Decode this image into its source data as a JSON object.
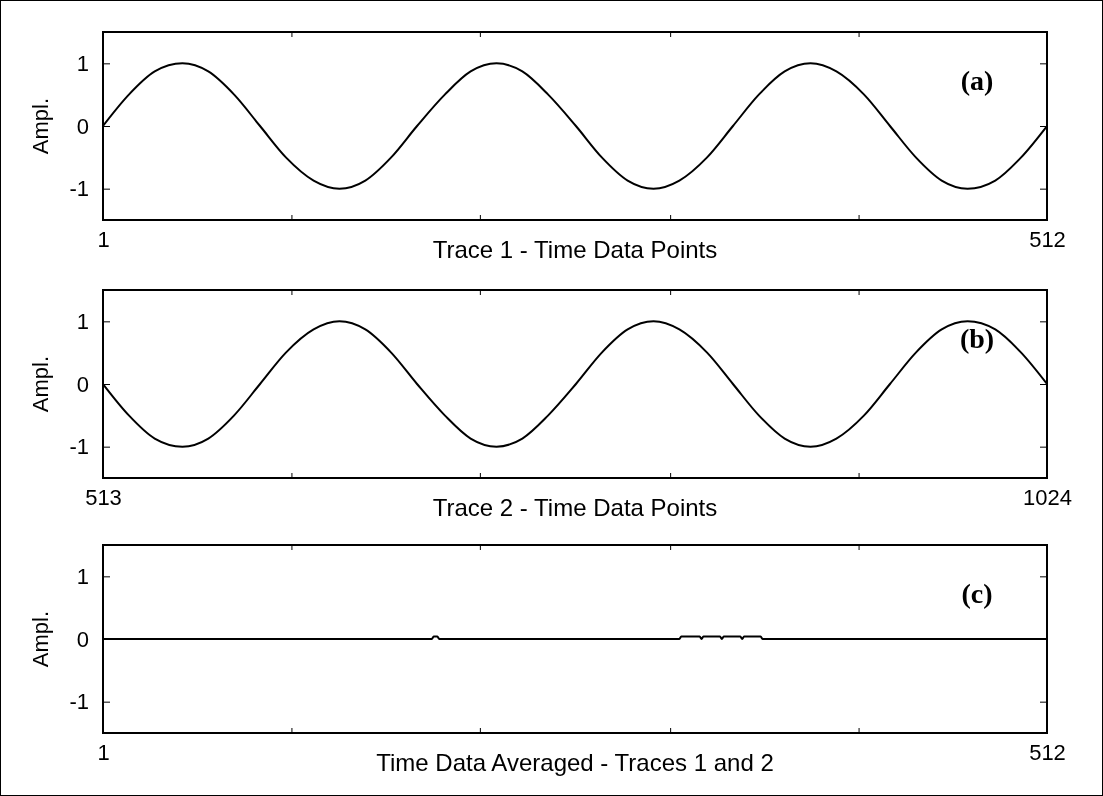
{
  "chart_data": [
    {
      "type": "line",
      "xlabel": "Trace 1 - Time Data Points",
      "ylabel": "Ampl.",
      "annotations": [
        "(a)"
      ],
      "xlim": [
        1,
        512
      ],
      "xticks": [
        1,
        {
          "value": 103,
          "label": null
        },
        {
          "value": 205,
          "label": null
        },
        {
          "value": 308,
          "label": null
        },
        {
          "value": 410,
          "label": null
        },
        512
      ],
      "ylim": [
        -1.5,
        1.5
      ],
      "yticks": [
        -1,
        0,
        1
      ],
      "grid": false,
      "series": [
        {
          "color": "#000000",
          "x": [
            1,
            15,
            29,
            44,
            58,
            72,
            86,
            100,
            115,
            129,
            143,
            157,
            171,
            186,
            200,
            214,
            228,
            242,
            257,
            271,
            285,
            299,
            313,
            328,
            342,
            356,
            370,
            384,
            398,
            413,
            427,
            441,
            455,
            469,
            484,
            498,
            512
          ],
          "values": [
            0,
            0.5,
            0.87,
            1,
            0.87,
            0.5,
            0,
            -0.5,
            -0.87,
            -1,
            -0.87,
            -0.5,
            0,
            0.5,
            0.87,
            1,
            0.87,
            0.5,
            0,
            -0.5,
            -0.87,
            -1,
            -0.87,
            -0.5,
            0,
            0.5,
            0.87,
            1,
            0.87,
            0.5,
            0,
            -0.5,
            -0.87,
            -1,
            -0.87,
            -0.5,
            0
          ]
        }
      ]
    },
    {
      "type": "line",
      "xlabel": "Trace 2 - Time Data Points",
      "ylabel": "Ampl.",
      "annotations": [
        "(b)"
      ],
      "xlim": [
        513,
        1024
      ],
      "xticks": [
        513,
        {
          "value": 615,
          "label": null
        },
        {
          "value": 717,
          "label": null
        },
        {
          "value": 820,
          "label": null
        },
        {
          "value": 922,
          "label": null
        },
        1024
      ],
      "ylim": [
        -1.5,
        1.5
      ],
      "yticks": [
        -1,
        0,
        1
      ],
      "grid": false,
      "series": [
        {
          "color": "#000000",
          "x": [
            513,
            527,
            541,
            556,
            570,
            584,
            598,
            612,
            627,
            641,
            655,
            669,
            683,
            698,
            712,
            726,
            740,
            754,
            769,
            783,
            797,
            811,
            825,
            840,
            854,
            868,
            882,
            896,
            910,
            925,
            939,
            953,
            967,
            981,
            996,
            1010,
            1024
          ],
          "values": [
            0,
            -0.5,
            -0.87,
            -1,
            -0.87,
            -0.5,
            0,
            0.5,
            0.87,
            1,
            0.87,
            0.5,
            0,
            -0.5,
            -0.87,
            -1,
            -0.87,
            -0.5,
            0,
            0.5,
            0.87,
            1,
            0.87,
            0.5,
            0,
            -0.5,
            -0.87,
            -1,
            -0.87,
            -0.5,
            0,
            0.5,
            0.87,
            1,
            0.87,
            0.5,
            0
          ]
        }
      ]
    },
    {
      "type": "line",
      "xlabel": "Time Data Averaged - Traces 1 and 2",
      "ylabel": "Ampl.",
      "annotations": [
        "(c)"
      ],
      "xlim": [
        1,
        512
      ],
      "xticks": [
        1,
        {
          "value": 103,
          "label": null
        },
        {
          "value": 205,
          "label": null
        },
        {
          "value": 308,
          "label": null
        },
        {
          "value": 410,
          "label": null
        },
        512
      ],
      "ylim": [
        -1.5,
        1.5
      ],
      "yticks": [
        -1,
        0,
        1
      ],
      "grid": false,
      "series": [
        {
          "color": "#000000",
          "x": [
            1,
            179,
            180,
            182,
            183,
            313,
            314,
            324,
            325,
            326,
            335,
            336,
            337,
            346,
            347,
            348,
            357,
            358,
            512
          ],
          "values": [
            0,
            0,
            0.04,
            0.04,
            0,
            0,
            0.04,
            0.04,
            0,
            0.04,
            0.04,
            0,
            0.04,
            0.04,
            0,
            0.04,
            0.04,
            0,
            0
          ]
        }
      ]
    }
  ]
}
